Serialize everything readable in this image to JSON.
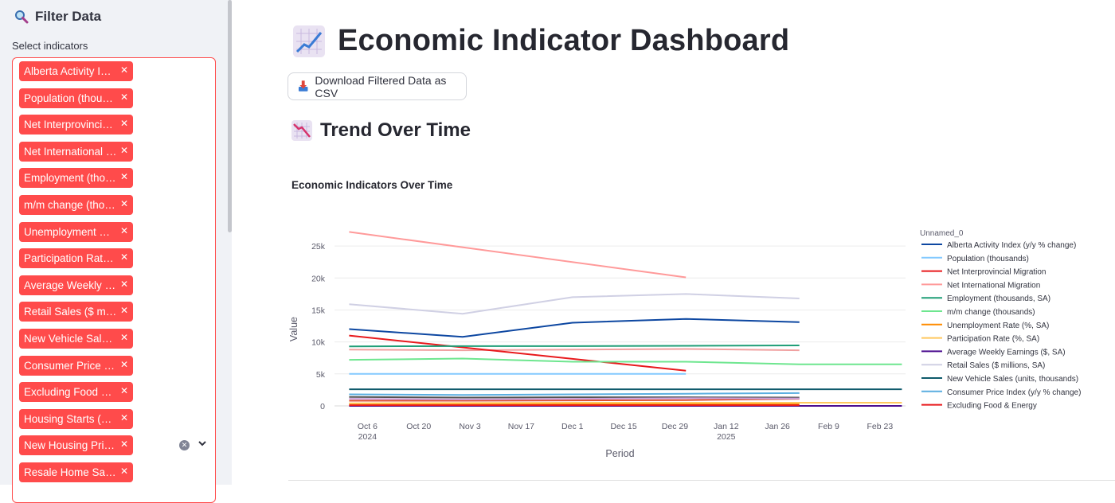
{
  "sidebar": {
    "title": "Filter Data",
    "select_label": "Select indicators",
    "chips": [
      "Alberta Activity Index (y/y % change)",
      "Population (thousands)",
      "Net Interprovincial Migration",
      "Net International Migration",
      "Employment (thousands, SA)",
      "m/m change (thousands)",
      "Unemployment Rate (%, SA)",
      "Participation Rate (%, SA)",
      "Average Weekly Earnings ($, SA)",
      "Retail Sales ($ millions, SA)",
      "New Vehicle Sales (units, thousands)",
      "Consumer Price Index (y/y % change)",
      "Excluding Food & Energy",
      "Housing Starts (units)",
      "New Housing Price Index",
      "Resale Home Sales"
    ]
  },
  "main": {
    "title": "Economic Indicator Dashboard",
    "download_label": "Download Filtered Data as CSV",
    "section_title": "Trend Over Time"
  },
  "chart_data": {
    "type": "line",
    "title": "Economic Indicators Over Time",
    "xlabel": "Period",
    "ylabel": "Value",
    "legend_title": "Unnamed_0",
    "legend_position": "right",
    "ylim": [
      -1000,
      28000
    ],
    "yticks": [
      0,
      5000,
      10000,
      15000,
      20000,
      25000
    ],
    "ytick_labels": [
      "0",
      "5k",
      "10k",
      "15k",
      "20k",
      "25k"
    ],
    "xlim": [
      "2024-09-27",
      "2025-03-02"
    ],
    "xticks": [
      "2024-10-06",
      "2024-10-20",
      "2024-11-03",
      "2024-11-17",
      "2024-12-01",
      "2024-12-15",
      "2024-12-29",
      "2025-01-12",
      "2025-01-26",
      "2025-02-09",
      "2025-02-23"
    ],
    "xtick_labels": [
      [
        "Oct 6",
        "2024"
      ],
      [
        "Oct 20"
      ],
      [
        "Nov 3"
      ],
      [
        "Nov 17"
      ],
      [
        "Dec 1"
      ],
      [
        "Dec 15"
      ],
      [
        "Dec 29"
      ],
      [
        "Jan 12",
        "2025"
      ],
      [
        "Jan 26"
      ],
      [
        "Feb 9"
      ],
      [
        "Feb 23"
      ]
    ],
    "series": [
      {
        "name": "Alberta Activity Index (y/y % change)",
        "color": "#0d47a1",
        "x": [
          "2024-10-01",
          "2024-11-01",
          "2024-12-01",
          "2025-01-01",
          "2025-02-01"
        ],
        "y": [
          12000,
          10800,
          13000,
          13600,
          13100
        ]
      },
      {
        "name": "Population (thousands)",
        "color": "#83c9ff",
        "x": [
          "2024-10-01",
          "2024-11-01",
          "2024-12-01",
          "2025-01-01"
        ],
        "y": [
          5000,
          5000,
          5000,
          5000
        ]
      },
      {
        "name": "Net Interprovincial Migration",
        "color": "#e8191c",
        "x": [
          "2024-10-01",
          "2025-01-01"
        ],
        "y": [
          11000,
          5500
        ]
      },
      {
        "name": "Net International Migration",
        "color": "#ff9a9a",
        "x": [
          "2024-10-01",
          "2025-01-01"
        ],
        "y": [
          27200,
          20100
        ]
      },
      {
        "name": "Employment (thousands, SA)",
        "color": "#1f9e77",
        "x": [
          "2024-10-01",
          "2024-11-01",
          "2024-12-01",
          "2025-01-01",
          "2025-02-01"
        ],
        "y": [
          9300,
          9350,
          9350,
          9400,
          9450
        ]
      },
      {
        "name": "m/m change (thousands)",
        "color": "#6ee68f",
        "x": [
          "2024-10-01",
          "2024-11-01",
          "2024-12-01",
          "2025-01-01",
          "2025-02-01",
          "2025-03-01"
        ],
        "y": [
          7200,
          7400,
          6900,
          6900,
          6500,
          6500
        ]
      },
      {
        "name": "Unemployment Rate (%, SA)",
        "color": "#ff8c00",
        "x": [
          "2024-10-01",
          "2024-11-01",
          "2024-12-01",
          "2025-01-01",
          "2025-02-01"
        ],
        "y": [
          300,
          300,
          300,
          300,
          300
        ]
      },
      {
        "name": "Participation Rate (%, SA)",
        "color": "#ffc85e",
        "x": [
          "2024-10-01",
          "2024-11-01",
          "2024-12-01",
          "2025-01-01",
          "2025-02-01",
          "2025-03-01"
        ],
        "y": [
          400,
          450,
          500,
          500,
          500,
          500
        ]
      },
      {
        "name": "Average Weekly Earnings ($, SA)",
        "color": "#4b0d8f",
        "x": [
          "2024-10-01",
          "2024-11-01",
          "2024-12-01",
          "2025-01-01",
          "2025-02-01",
          "2025-03-01"
        ],
        "y": [
          0,
          0,
          0,
          0,
          0,
          0
        ]
      },
      {
        "name": "Retail Sales ($ millions, SA)",
        "color": "#d0d0e4",
        "x": [
          "2024-10-01",
          "2024-11-01",
          "2024-12-01",
          "2025-01-01",
          "2025-02-01"
        ],
        "y": [
          15900,
          14400,
          17000,
          17500,
          16800
        ]
      },
      {
        "name": "New Vehicle Sales (units, thousands)",
        "color": "#0e5a6b",
        "x": [
          "2024-10-01",
          "2024-11-01",
          "2024-12-01",
          "2025-01-01",
          "2025-02-01",
          "2025-03-01"
        ],
        "y": [
          2600,
          2600,
          2600,
          2600,
          2600,
          2600
        ]
      },
      {
        "name": "Consumer Price Index (y/y % change)",
        "color": "#5aaee0",
        "x": [
          "2024-10-01",
          "2024-11-01",
          "2024-12-01",
          "2025-01-01",
          "2025-02-01"
        ],
        "y": [
          1800,
          1700,
          1800,
          1900,
          2000
        ]
      },
      {
        "name": "Excluding Food & Energy",
        "color": "#e8191c",
        "x": [
          "2024-10-01",
          "2024-11-01",
          "2024-12-01",
          "2025-01-01",
          "2025-02-01"
        ],
        "y": [
          100,
          100,
          100,
          100,
          100
        ]
      }
    ],
    "extra_lines": [
      {
        "color": "#f0a0a0",
        "x": [
          "2024-10-01",
          "2024-11-01",
          "2024-12-01",
          "2025-01-01",
          "2025-02-01"
        ],
        "y": [
          8800,
          8700,
          8800,
          8900,
          8700
        ]
      },
      {
        "color": "#555555",
        "x": [
          "2024-10-01",
          "2024-11-01",
          "2024-12-01",
          "2025-01-01",
          "2025-02-01"
        ],
        "y": [
          1400,
          1300,
          1350,
          1350,
          1300
        ]
      },
      {
        "color": "#e05030",
        "x": [
          "2024-10-01",
          "2024-11-01",
          "2024-12-01",
          "2025-01-01",
          "2025-02-01"
        ],
        "y": [
          800,
          800,
          850,
          900,
          1100
        ]
      },
      {
        "color": "#c9a0dc",
        "x": [
          "2024-10-01",
          "2024-11-01",
          "2024-12-01",
          "2025-01-01",
          "2025-02-01"
        ],
        "y": [
          1100,
          1000,
          1100,
          1200,
          1150
        ]
      }
    ]
  }
}
